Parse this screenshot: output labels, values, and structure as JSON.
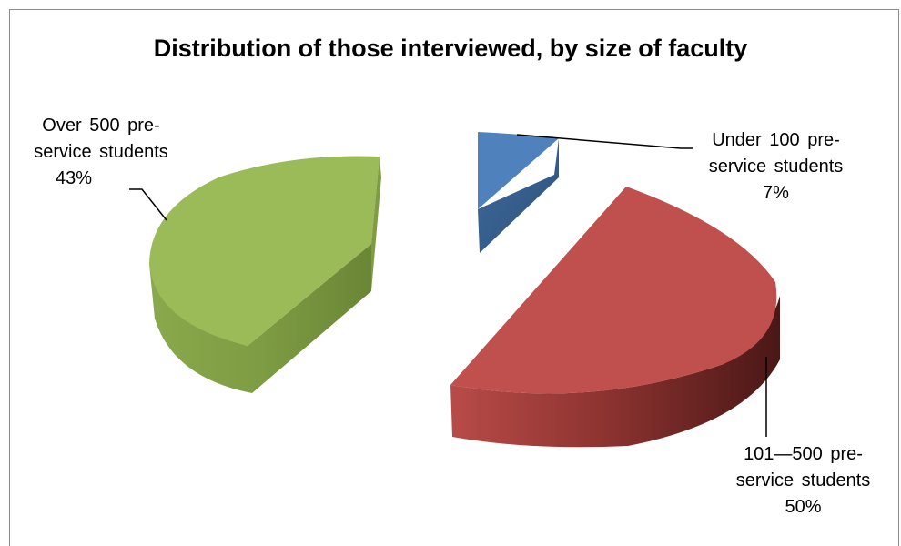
{
  "chart_data": {
    "type": "pie",
    "title": "Distribution of those interviewed, by size of faculty",
    "slices": [
      {
        "label": "Under 100 pre-service students",
        "label_lines": [
          "Under 100 pre-",
          "service students"
        ],
        "value": 7,
        "value_label": "7%",
        "color": "#4f81bd"
      },
      {
        "label": "101—500 pre-service students",
        "label_lines": [
          "101—500 pre-",
          "service students"
        ],
        "value": 50,
        "value_label": "50%",
        "color": "#c0504d"
      },
      {
        "label": "Over 500 pre-service students",
        "label_lines": [
          "Over 500 pre-",
          "service students"
        ],
        "value": 43,
        "value_label": "43%",
        "color": "#9bbb59"
      }
    ],
    "style": "3d-exploded",
    "legend": "none"
  }
}
